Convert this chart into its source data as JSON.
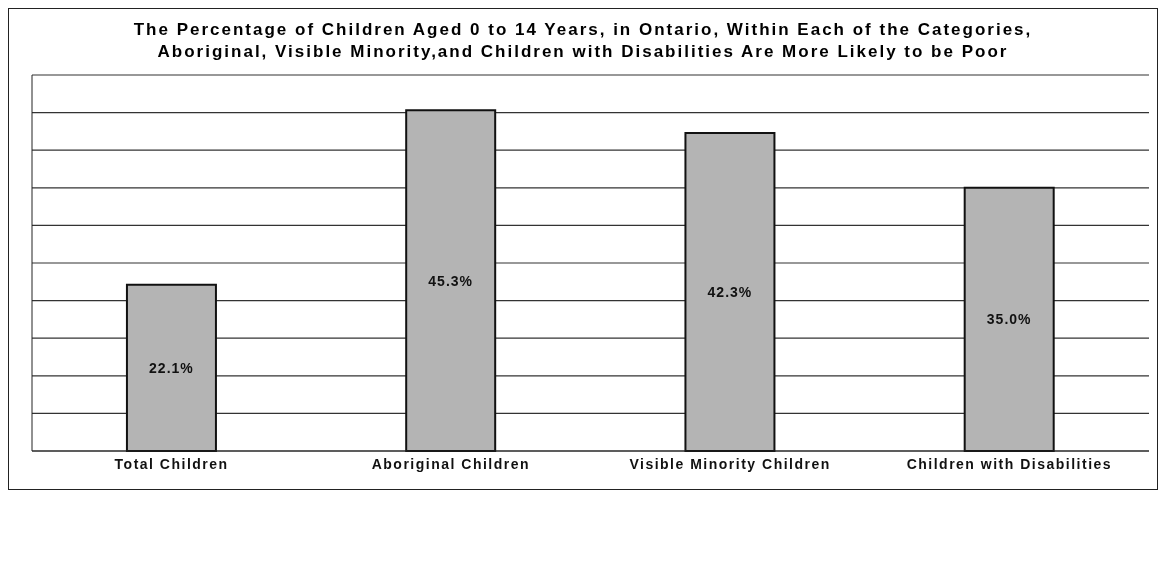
{
  "chart_data": {
    "type": "bar",
    "title": "The Percentage of Children Aged 0 to 14 Years, in Ontario, Within Each of the Categories, Aboriginal, Visible Minority,and Children with Disabilities  Are More Likely to be Poor",
    "categories": [
      "Total Children",
      "Aboriginal Children",
      "Visible Minority Children",
      "Children with Disabilities"
    ],
    "values": [
      22.1,
      45.3,
      42.3,
      35.0
    ],
    "value_labels": [
      "22.1%",
      "45.3%",
      "42.3%",
      "35.0%"
    ],
    "color": "#b4b4b4",
    "grid": "y"
  }
}
